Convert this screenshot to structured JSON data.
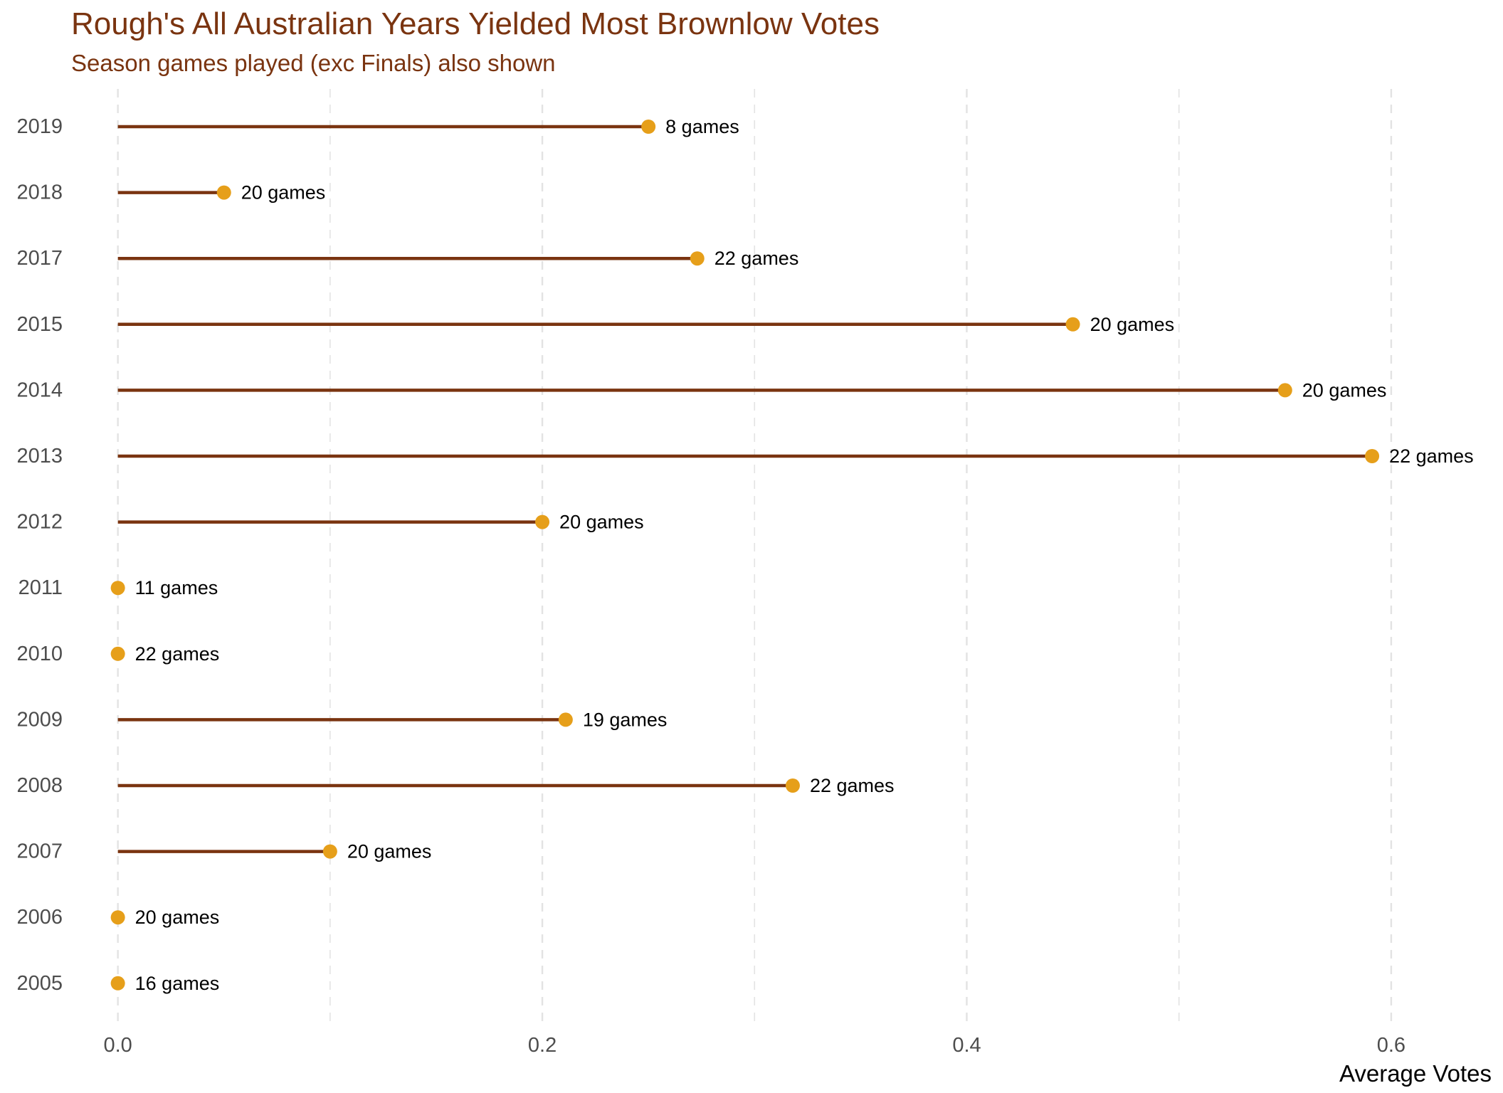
{
  "chart_data": {
    "type": "lollipop",
    "title": "Rough's All Australian Years Yielded Most Brownlow Votes",
    "subtitle": "Season games played (exc Finals) also shown",
    "xlabel": "Average Votes",
    "ylabel": "",
    "xlim": [
      -0.02,
      0.65
    ],
    "x_ticks": [
      0.0,
      0.2,
      0.4,
      0.6
    ],
    "x_tick_labels": [
      "0.0",
      "0.2",
      "0.4",
      "0.6"
    ],
    "grid": {
      "vertical_major": true,
      "vertical_minor": true,
      "horizontal": false,
      "style": "dashed"
    },
    "legend": "none",
    "categories": [
      "2019",
      "2018",
      "2017",
      "2015",
      "2014",
      "2013",
      "2012",
      "2011",
      "2010",
      "2009",
      "2008",
      "2007",
      "2006",
      "2005"
    ],
    "values": [
      0.25,
      0.05,
      0.273,
      0.45,
      0.55,
      0.591,
      0.2,
      0.0,
      0.0,
      0.211,
      0.318,
      0.1,
      0.0,
      0.0
    ],
    "labels": [
      "8 games",
      "20 games",
      "22 games",
      "20 games",
      "20 games",
      "22 games",
      "20 games",
      "11 games",
      "22 games",
      "19 games",
      "22 games",
      "20 games",
      "20 games",
      "16 games"
    ],
    "colors": {
      "stem": "#7a3410",
      "point": "#e69f1a",
      "title": "#7a3410",
      "grid": "#e3e3e3",
      "tick_text": "#4d4d4d"
    }
  }
}
